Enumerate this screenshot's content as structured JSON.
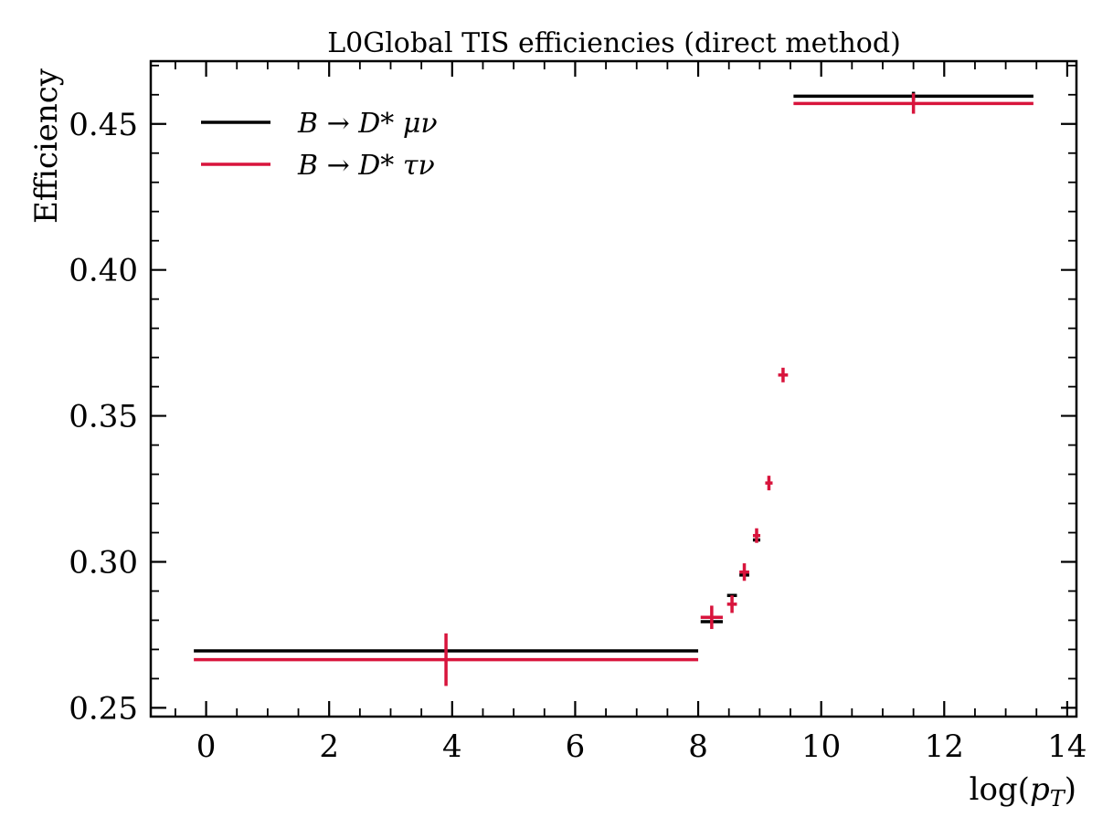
{
  "chart_data": {
    "type": "scatter",
    "title": "L0Global TIS efficiencies (direct method)",
    "xlabel": "log(p_T)",
    "xlabel_parts": {
      "prefix": "log(",
      "var": "p",
      "sub": "T",
      "suffix": ")"
    },
    "ylabel": "Efficiency",
    "xlim": [
      -0.9,
      14.15
    ],
    "ylim": [
      0.247,
      0.4715
    ],
    "xticks": [
      0,
      2,
      4,
      6,
      8,
      10,
      12,
      14
    ],
    "xtick_labels": [
      "0",
      "2",
      "4",
      "6",
      "8",
      "10",
      "12",
      "14"
    ],
    "yticks": [
      0.25,
      0.3,
      0.35,
      0.4,
      0.45
    ],
    "ytick_labels": [
      "0.25",
      "0.30",
      "0.35",
      "0.40",
      "0.45"
    ],
    "grid": false,
    "legend_position": "top-left",
    "series": [
      {
        "name": "B → D* μν",
        "color": "#000000",
        "points": [
          {
            "x": 3.9,
            "y": 0.2695,
            "xerr": [
              4.1,
              4.1
            ],
            "yerr": 0.0
          },
          {
            "x": 8.22,
            "y": 0.2795,
            "xerr": [
              0.18,
              0.18
            ],
            "yerr": 0.0
          },
          {
            "x": 8.55,
            "y": 0.2885,
            "xerr": [
              0.08,
              0.08
            ],
            "yerr": 0.0
          },
          {
            "x": 8.75,
            "y": 0.2955,
            "xerr": [
              0.08,
              0.08
            ],
            "yerr": 0.0
          },
          {
            "x": 8.95,
            "y": 0.3075,
            "xerr": [
              0.06,
              0.06
            ],
            "yerr": 0.0
          },
          {
            "x": 11.5,
            "y": 0.4595,
            "xerr": [
              1.95,
              1.95
            ],
            "yerr": 0.0015
          }
        ]
      },
      {
        "name": "B → D* τν",
        "color": "#d8143c",
        "points": [
          {
            "x": 3.9,
            "y": 0.2665,
            "xerr": [
              4.1,
              4.1
            ],
            "yerr": 0.009
          },
          {
            "x": 8.22,
            "y": 0.281,
            "xerr": [
              0.18,
              0.18
            ],
            "yerr": 0.004
          },
          {
            "x": 8.55,
            "y": 0.2855,
            "xerr": [
              0.08,
              0.08
            ],
            "yerr": 0.003
          },
          {
            "x": 8.75,
            "y": 0.2965,
            "xerr": [
              0.08,
              0.08
            ],
            "yerr": 0.003
          },
          {
            "x": 8.95,
            "y": 0.309,
            "xerr": [
              0.06,
              0.06
            ],
            "yerr": 0.0025
          },
          {
            "x": 9.15,
            "y": 0.327,
            "xerr": [
              0.06,
              0.06
            ],
            "yerr": 0.0025
          },
          {
            "x": 9.38,
            "y": 0.364,
            "xerr": [
              0.08,
              0.08
            ],
            "yerr": 0.0025
          },
          {
            "x": 11.5,
            "y": 0.457,
            "xerr": [
              1.95,
              1.95
            ],
            "yerr": 0.0035
          }
        ]
      }
    ]
  }
}
